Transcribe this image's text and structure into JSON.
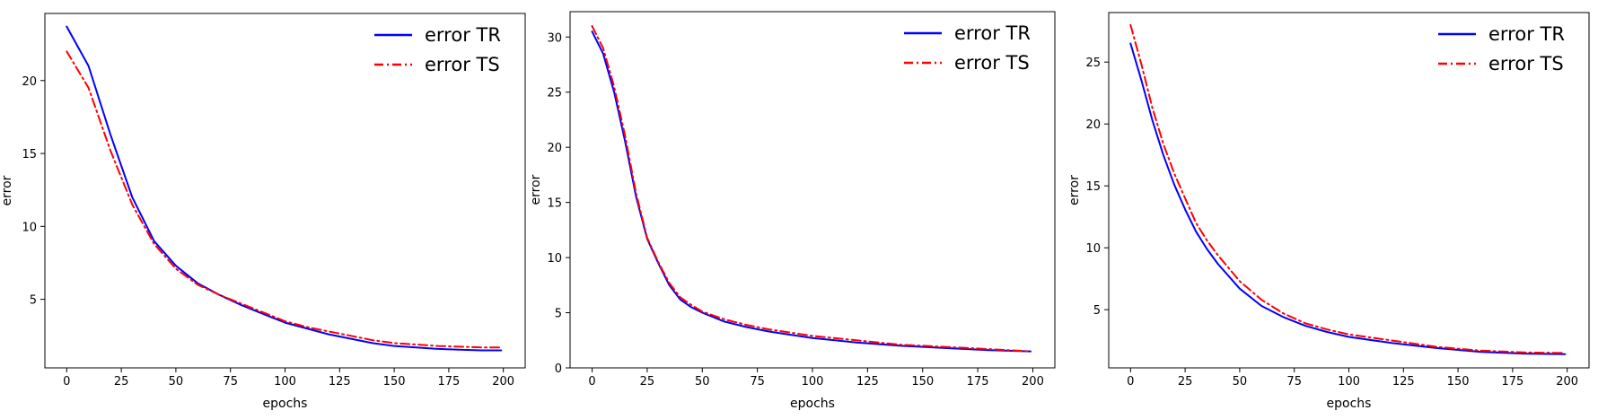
{
  "colors": {
    "train": "#0000ff",
    "test": "#ff0000",
    "axis": "#000000"
  },
  "chart_data": [
    {
      "type": "line",
      "xlabel": "epochs",
      "ylabel": "error",
      "xlim": [
        -10,
        210
      ],
      "ylim": [
        0.3,
        24.6
      ],
      "xticks": [
        0,
        25,
        50,
        75,
        100,
        125,
        150,
        175,
        200
      ],
      "yticks": [
        5,
        10,
        15,
        20
      ],
      "legend_position": "top-right",
      "series": [
        {
          "name": "error TR",
          "style": "solid",
          "x": [
            0,
            10,
            20,
            30,
            40,
            50,
            60,
            70,
            80,
            90,
            100,
            110,
            120,
            130,
            140,
            150,
            160,
            170,
            180,
            190,
            199
          ],
          "y": [
            23.7,
            21.0,
            16.3,
            12.0,
            9.0,
            7.3,
            6.1,
            5.3,
            4.6,
            4.0,
            3.4,
            3.0,
            2.6,
            2.3,
            2.0,
            1.8,
            1.7,
            1.6,
            1.55,
            1.5,
            1.5
          ]
        },
        {
          "name": "error TS",
          "style": "dashdot",
          "x": [
            0,
            10,
            20,
            30,
            40,
            50,
            60,
            70,
            80,
            90,
            100,
            110,
            120,
            130,
            140,
            150,
            160,
            170,
            180,
            190,
            199
          ],
          "y": [
            22.0,
            19.5,
            15.2,
            11.5,
            8.8,
            7.1,
            6.0,
            5.3,
            4.7,
            4.1,
            3.5,
            3.1,
            2.8,
            2.5,
            2.2,
            2.0,
            1.9,
            1.8,
            1.75,
            1.7,
            1.7
          ]
        }
      ]
    },
    {
      "type": "line",
      "xlabel": "epochs",
      "ylabel": "error",
      "xlim": [
        -10,
        210
      ],
      "ylim": [
        0,
        32.3
      ],
      "xticks": [
        0,
        25,
        50,
        75,
        100,
        125,
        150,
        175,
        200
      ],
      "yticks": [
        0,
        5,
        10,
        15,
        20,
        25,
        30
      ],
      "legend_position": "top-right",
      "series": [
        {
          "name": "error TR",
          "style": "solid",
          "x": [
            0,
            5,
            10,
            15,
            20,
            25,
            30,
            35,
            40,
            45,
            50,
            60,
            70,
            80,
            90,
            100,
            120,
            140,
            160,
            180,
            199
          ],
          "y": [
            30.5,
            28.5,
            25.0,
            20.5,
            15.5,
            11.7,
            9.5,
            7.5,
            6.2,
            5.5,
            5.0,
            4.2,
            3.7,
            3.3,
            3.0,
            2.7,
            2.3,
            2.0,
            1.8,
            1.6,
            1.5
          ]
        },
        {
          "name": "error TS",
          "style": "dashdot",
          "x": [
            0,
            5,
            10,
            15,
            20,
            25,
            30,
            35,
            40,
            45,
            50,
            60,
            70,
            80,
            90,
            100,
            120,
            140,
            160,
            180,
            199
          ],
          "y": [
            31.0,
            29.0,
            25.5,
            21.0,
            15.8,
            11.8,
            9.6,
            7.7,
            6.4,
            5.7,
            5.1,
            4.4,
            3.9,
            3.5,
            3.2,
            2.9,
            2.5,
            2.1,
            1.9,
            1.7,
            1.5
          ]
        }
      ]
    },
    {
      "type": "line",
      "xlabel": "epochs",
      "ylabel": "error",
      "xlim": [
        -10,
        210
      ],
      "ylim": [
        0.3,
        29.0
      ],
      "xticks": [
        0,
        25,
        50,
        75,
        100,
        125,
        150,
        175,
        200
      ],
      "yticks": [
        5,
        10,
        15,
        20,
        25
      ],
      "legend_position": "top-right",
      "series": [
        {
          "name": "error TR",
          "style": "solid",
          "x": [
            0,
            5,
            10,
            15,
            20,
            25,
            30,
            35,
            40,
            50,
            60,
            70,
            80,
            90,
            100,
            120,
            140,
            160,
            180,
            199
          ],
          "y": [
            26.5,
            23.5,
            20.3,
            17.5,
            15.1,
            13.1,
            11.3,
            9.9,
            8.7,
            6.7,
            5.3,
            4.4,
            3.7,
            3.2,
            2.8,
            2.3,
            1.9,
            1.6,
            1.45,
            1.4
          ]
        },
        {
          "name": "error TS",
          "style": "dashdot",
          "x": [
            0,
            5,
            10,
            15,
            20,
            25,
            30,
            35,
            40,
            50,
            60,
            70,
            80,
            90,
            100,
            120,
            140,
            160,
            180,
            199
          ],
          "y": [
            28.0,
            24.8,
            21.3,
            18.4,
            16.0,
            14.0,
            12.0,
            10.6,
            9.4,
            7.3,
            5.8,
            4.7,
            3.9,
            3.4,
            3.0,
            2.5,
            2.0,
            1.7,
            1.55,
            1.5
          ]
        }
      ]
    }
  ]
}
